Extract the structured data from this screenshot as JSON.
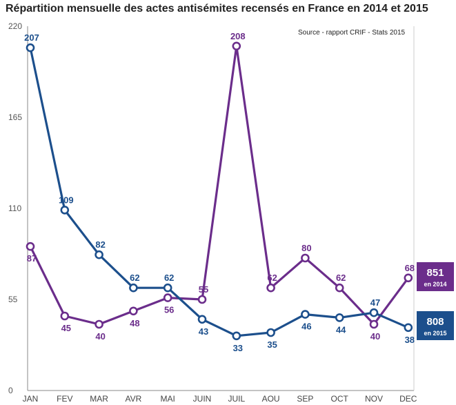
{
  "chart_data": {
    "type": "line",
    "title": "Répartition mensuelle des actes antisémites recensés en France en 2014 et 2015",
    "source": "Source - rapport CRIF - Stats 2015",
    "categories": [
      "JAN",
      "FEV",
      "MAR",
      "AVR",
      "MAI",
      "JUIN",
      "JUIL",
      "AOU",
      "SEP",
      "OCT",
      "NOV",
      "DEC"
    ],
    "ylim": [
      0,
      220
    ],
    "yticks": [
      "0",
      "55",
      "110",
      "165",
      "220"
    ],
    "grid": false,
    "series": [
      {
        "key": "2014",
        "color": "#6b2d8b",
        "values": [
          87,
          45,
          40,
          48,
          56,
          55,
          208,
          62,
          80,
          62,
          40,
          68
        ],
        "total": "851",
        "total_label": "en 2014"
      },
      {
        "key": "2015",
        "color": "#1c4f8c",
        "values": [
          207,
          109,
          82,
          62,
          62,
          43,
          33,
          35,
          46,
          44,
          47,
          38
        ],
        "total": "808",
        "total_label": "en 2015"
      }
    ]
  }
}
